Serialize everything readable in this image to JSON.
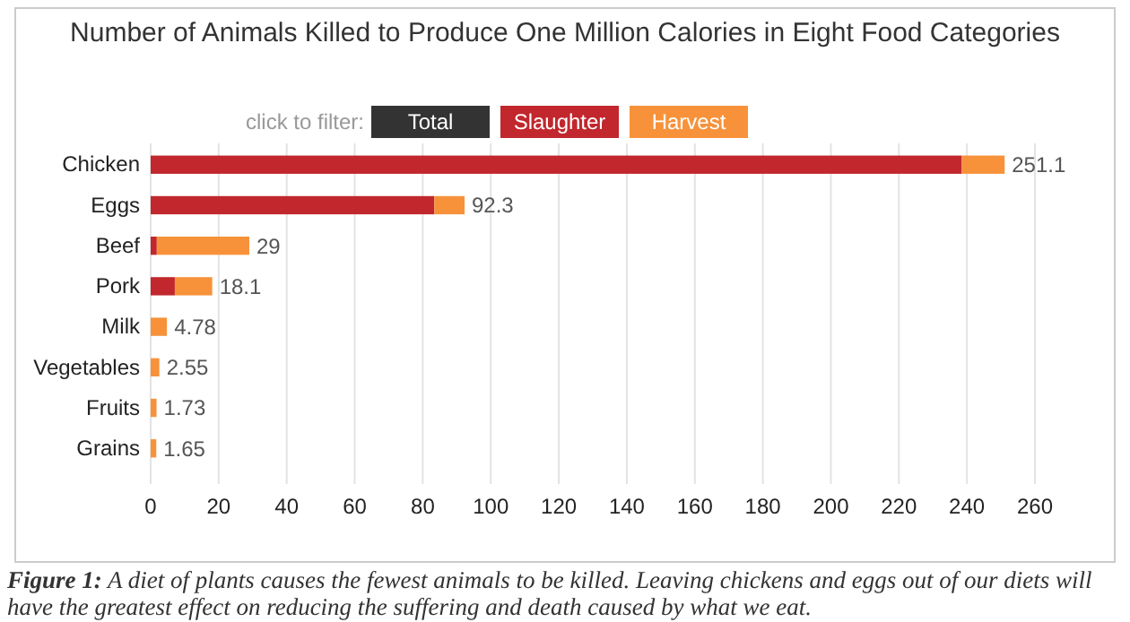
{
  "chart_data": {
    "type": "bar",
    "orientation": "horizontal",
    "stacked": true,
    "title": "Number of Animals Killed to Produce One Million Calories in Eight Food Categories",
    "categories": [
      "Chicken",
      "Eggs",
      "Beef",
      "Pork",
      "Milk",
      "Vegetables",
      "Fruits",
      "Grains"
    ],
    "series": [
      {
        "name": "Slaughter",
        "color": "#c1272d",
        "values": [
          238.5,
          83.4,
          1.8,
          7.1,
          0,
          0,
          0,
          0
        ]
      },
      {
        "name": "Harvest",
        "color": "#f7923a",
        "values": [
          12.6,
          8.9,
          27.2,
          11.0,
          4.78,
          2.55,
          1.73,
          1.65
        ]
      }
    ],
    "totals": [
      "251.1",
      "92.3",
      "29",
      "18.1",
      "4.78",
      "2.55",
      "1.73",
      "1.65"
    ],
    "xlim": [
      0,
      260
    ],
    "xticks": [
      0,
      20,
      40,
      60,
      80,
      100,
      120,
      140,
      160,
      180,
      200,
      220,
      240,
      260
    ],
    "grid": "x",
    "legend": "top",
    "legend_title": "click to filter:",
    "annotations": [
      "Total",
      "Figure 1: A diet of plants causes the fewest animals to be killed. Leaving chickens and eggs out of our diets will have the greatest effect on reducing the suffering and death caused by what we eat."
    ]
  }
}
